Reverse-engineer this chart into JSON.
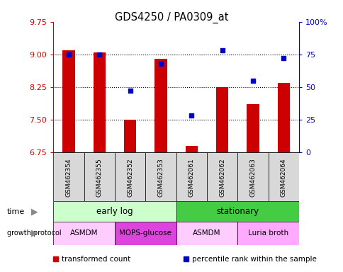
{
  "title": "GDS4250 / PA0309_at",
  "samples": [
    "GSM462354",
    "GSM462355",
    "GSM462352",
    "GSM462353",
    "GSM462061",
    "GSM462062",
    "GSM462063",
    "GSM462064"
  ],
  "bar_values": [
    9.1,
    9.05,
    7.5,
    8.9,
    6.9,
    8.25,
    7.85,
    8.35
  ],
  "percentile_values": [
    75,
    75,
    47,
    68,
    28,
    78,
    55,
    72
  ],
  "ylim_left": [
    6.75,
    9.75
  ],
  "ylim_right": [
    0,
    100
  ],
  "yticks_left": [
    6.75,
    7.5,
    8.25,
    9.0,
    9.75
  ],
  "yticks_right": [
    0,
    25,
    50,
    75,
    100
  ],
  "ytick_labels_right": [
    "0",
    "25",
    "50",
    "75",
    "100%"
  ],
  "bar_color": "#cc0000",
  "dot_color": "#0000cc",
  "baseline": 6.75,
  "time_groups": [
    {
      "label": "early log",
      "start": 0,
      "end": 4,
      "color": "#ccffcc"
    },
    {
      "label": "stationary",
      "start": 4,
      "end": 8,
      "color": "#44cc44"
    }
  ],
  "protocol_groups": [
    {
      "label": "ASMDM",
      "start": 0,
      "end": 2,
      "color": "#ffccff"
    },
    {
      "label": "MOPS-glucose",
      "start": 2,
      "end": 4,
      "color": "#dd44dd"
    },
    {
      "label": "ASMDM",
      "start": 4,
      "end": 6,
      "color": "#ffccff"
    },
    {
      "label": "Luria broth",
      "start": 6,
      "end": 8,
      "color": "#ffaaff"
    }
  ],
  "legend_items": [
    {
      "label": "transformed count",
      "color": "#cc0000"
    },
    {
      "label": "percentile rank within the sample",
      "color": "#0000cc"
    }
  ],
  "left_axis_color": "#cc0000",
  "right_axis_color": "#0000cc",
  "sample_cell_color": "#d8d8d8",
  "bar_width": 0.4
}
